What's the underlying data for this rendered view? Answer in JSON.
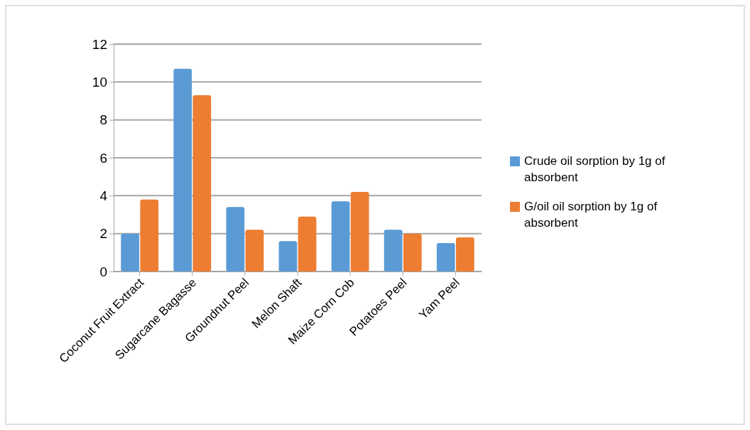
{
  "chart_data": {
    "type": "bar",
    "categories": [
      "Coconut Fruit Extract",
      "Sugarcane Bagasse",
      "Groundnut Peel",
      "Melon Shaft",
      "Maize Corn Cob",
      "Potatoes Peel",
      "Yam Peel"
    ],
    "series": [
      {
        "name": "Crude oil sorption by 1g of absorbent",
        "color": "#5b9bd5",
        "values": [
          2.0,
          10.7,
          3.4,
          1.6,
          3.7,
          2.2,
          1.5
        ]
      },
      {
        "name": "G/oil oil sorption by 1g of absorbent",
        "color": "#ed7d31",
        "values": [
          3.8,
          9.3,
          2.2,
          2.9,
          4.2,
          2.0,
          1.8
        ]
      }
    ],
    "ylim": [
      0,
      12
    ],
    "yticks": [
      0,
      2,
      4,
      6,
      8,
      10,
      12
    ],
    "grid": "y",
    "legend": "right"
  }
}
